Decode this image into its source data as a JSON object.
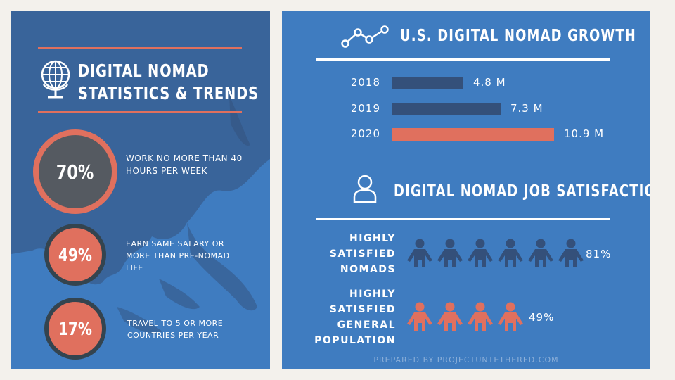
{
  "left": {
    "title_line1": "DIGITAL NOMAD",
    "title_line2": "STATISTICS & TRENDS",
    "icons": [
      "globe-icon"
    ],
    "stats": [
      {
        "value": "70%",
        "text": "WORK NO MORE THAN 40 HOURS PER WEEK"
      },
      {
        "value": "49%",
        "text": "EARN SAME SALARY OR MORE THAN PRE-NOMAD LIFE"
      },
      {
        "value": "17%",
        "text": "TRAVEL TO 5 OR MORE COUNTRIES PER YEAR"
      }
    ]
  },
  "right": {
    "growth_title": "U.S. DIGITAL NOMAD GROWTH",
    "satisfaction_title": "DIGITAL NOMAD JOB SATISFACTION",
    "satisfaction_rows": [
      {
        "label_lines": [
          "HIGHLY",
          "SATISFIED",
          "NOMADS"
        ],
        "pct": "81%",
        "icons": 6
      },
      {
        "label_lines": [
          "HIGHLY",
          "SATISFIED",
          "GENERAL",
          "POPULATION"
        ],
        "pct": "49%",
        "icons": 4
      }
    ],
    "footer": "PREPARED BY PROJECTUNTETHERED.COM",
    "icons": [
      "line-chart-icon",
      "user-icon",
      "person-icon"
    ]
  },
  "colors": {
    "panel_blue": "#3f7cc0",
    "dark_navy": "#34507a",
    "coral": "#e0705e",
    "dark_gray": "#555a61",
    "white": "#ffffff"
  },
  "chart_data": {
    "type": "bar",
    "title": "U.S. DIGITAL NOMAD GROWTH",
    "categories": [
      "2018",
      "2019",
      "2020"
    ],
    "values": [
      4.8,
      7.3,
      10.9
    ],
    "value_labels": [
      "4.8 M",
      "7.3 M",
      "10.9 M"
    ],
    "orientation": "horizontal",
    "highlight_category": "2020",
    "xlim": [
      0,
      10.9
    ]
  }
}
